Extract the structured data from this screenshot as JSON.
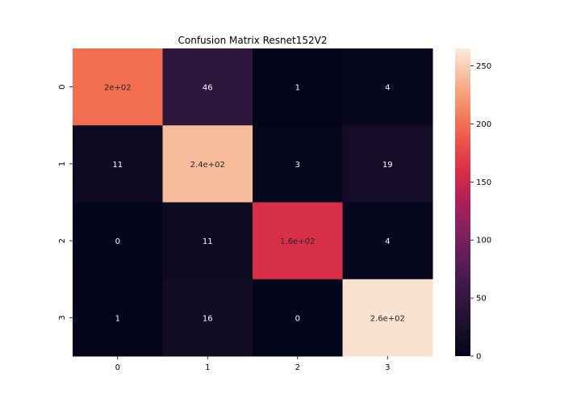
{
  "chart_data": {
    "type": "heatmap",
    "title": "Confusion Matrix Resnet152V2",
    "xlabel": "",
    "ylabel": "",
    "x_tick_labels": [
      "0",
      "1",
      "2",
      "3"
    ],
    "y_tick_labels": [
      "0",
      "1",
      "2",
      "3"
    ],
    "values": [
      [
        200,
        46,
        1,
        4
      ],
      [
        11,
        240,
        3,
        19
      ],
      [
        0,
        11,
        160,
        4
      ],
      [
        1,
        16,
        0,
        260
      ]
    ],
    "annotations": [
      [
        "2e+02",
        "46",
        "1",
        "4"
      ],
      [
        "11",
        "2.4e+02",
        "3",
        "19"
      ],
      [
        "0",
        "11",
        "1.6e+02",
        "4"
      ],
      [
        "1",
        "16",
        "0",
        "2.6e+02"
      ]
    ],
    "colorbar": {
      "range": [
        0,
        265
      ],
      "ticks": [
        0,
        50,
        100,
        150,
        200,
        250
      ],
      "tick_labels": [
        "0",
        "50",
        "100",
        "150",
        "200",
        "250"
      ]
    },
    "colormap": "rocket",
    "grid": false
  }
}
